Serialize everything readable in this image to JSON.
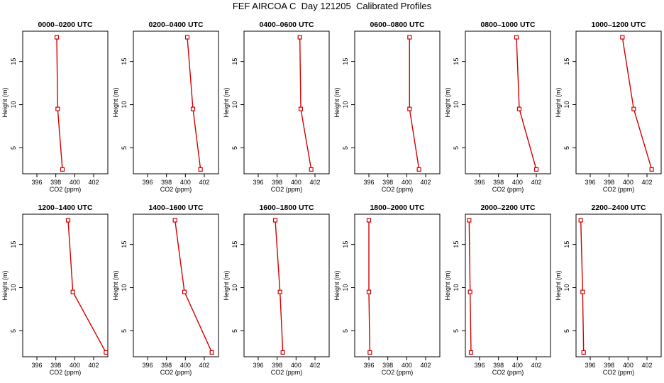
{
  "figure": {
    "title": "FEF AIRCOA C  Day 121205  Calibrated Profiles"
  },
  "chart_data": [
    {
      "type": "line",
      "title": "0000–0200 UTC",
      "xlabel": "CO2 (ppm)",
      "ylabel": "Height (m)",
      "xlim": [
        394.5,
        403.5
      ],
      "ylim": [
        2,
        18.5
      ],
      "xticks": [
        396,
        398,
        400,
        402
      ],
      "yticks": [
        5,
        10,
        15
      ],
      "grid": false,
      "series": [
        {
          "points": [
            {
              "x": 398.7,
              "y": 2.5
            },
            {
              "x": 398.2,
              "y": 9.5
            },
            {
              "x": 398.1,
              "y": 17.8
            }
          ]
        }
      ]
    },
    {
      "type": "line",
      "title": "0200–0400 UTC",
      "xlabel": "CO2 (ppm)",
      "ylabel": "Height (m)",
      "xlim": [
        394.5,
        403.5
      ],
      "ylim": [
        2,
        18.5
      ],
      "xticks": [
        396,
        398,
        400,
        402
      ],
      "yticks": [
        5,
        10,
        15
      ],
      "grid": false,
      "series": [
        {
          "points": [
            {
              "x": 401.6,
              "y": 2.5
            },
            {
              "x": 400.8,
              "y": 9.5
            },
            {
              "x": 400.2,
              "y": 17.8
            }
          ]
        }
      ]
    },
    {
      "type": "line",
      "title": "0400–0600 UTC",
      "xlabel": "CO2 (ppm)",
      "ylabel": "Height (m)",
      "xlim": [
        394.5,
        403.5
      ],
      "ylim": [
        2,
        18.5
      ],
      "xticks": [
        396,
        398,
        400,
        402
      ],
      "yticks": [
        5,
        10,
        15
      ],
      "grid": false,
      "series": [
        {
          "points": [
            {
              "x": 401.6,
              "y": 2.5
            },
            {
              "x": 400.5,
              "y": 9.5
            },
            {
              "x": 400.4,
              "y": 17.8
            }
          ]
        }
      ]
    },
    {
      "type": "line",
      "title": "0600–0800 UTC",
      "xlabel": "CO2 (ppm)",
      "ylabel": "Height (m)",
      "xlim": [
        394.5,
        403.5
      ],
      "ylim": [
        2,
        18.5
      ],
      "xticks": [
        396,
        398,
        400,
        402
      ],
      "yticks": [
        5,
        10,
        15
      ],
      "grid": false,
      "series": [
        {
          "points": [
            {
              "x": 401.3,
              "y": 2.5
            },
            {
              "x": 400.3,
              "y": 9.5
            },
            {
              "x": 400.3,
              "y": 17.8
            }
          ]
        }
      ]
    },
    {
      "type": "line",
      "title": "0800–1000 UTC",
      "xlabel": "CO2 (ppm)",
      "ylabel": "Height (m)",
      "xlim": [
        394.5,
        403.5
      ],
      "ylim": [
        2,
        18.5
      ],
      "xticks": [
        396,
        398,
        400,
        402
      ],
      "yticks": [
        5,
        10,
        15
      ],
      "grid": false,
      "series": [
        {
          "points": [
            {
              "x": 402.0,
              "y": 2.5
            },
            {
              "x": 400.2,
              "y": 9.5
            },
            {
              "x": 399.9,
              "y": 17.8
            }
          ]
        }
      ]
    },
    {
      "type": "line",
      "title": "1000–1200 UTC",
      "xlabel": "CO2 (ppm)",
      "ylabel": "Height (m)",
      "xlim": [
        394.5,
        403.5
      ],
      "ylim": [
        2,
        18.5
      ],
      "xticks": [
        396,
        398,
        400,
        402
      ],
      "yticks": [
        5,
        10,
        15
      ],
      "grid": false,
      "series": [
        {
          "points": [
            {
              "x": 402.5,
              "y": 2.5
            },
            {
              "x": 400.6,
              "y": 9.5
            },
            {
              "x": 399.4,
              "y": 17.8
            }
          ]
        }
      ]
    },
    {
      "type": "line",
      "title": "1200–1400 UTC",
      "xlabel": "CO2 (ppm)",
      "ylabel": "Height (m)",
      "xlim": [
        394.5,
        403.5
      ],
      "ylim": [
        2,
        18.5
      ],
      "xticks": [
        396,
        398,
        400,
        402
      ],
      "yticks": [
        5,
        10,
        15
      ],
      "grid": false,
      "series": [
        {
          "points": [
            {
              "x": 403.3,
              "y": 2.5
            },
            {
              "x": 399.8,
              "y": 9.5
            },
            {
              "x": 399.3,
              "y": 17.8
            }
          ]
        }
      ]
    },
    {
      "type": "line",
      "title": "1400–1600 UTC",
      "xlabel": "CO2 (ppm)",
      "ylabel": "Height (m)",
      "xlim": [
        394.5,
        403.5
      ],
      "ylim": [
        2,
        18.5
      ],
      "xticks": [
        396,
        398,
        400,
        402
      ],
      "yticks": [
        5,
        10,
        15
      ],
      "grid": false,
      "series": [
        {
          "points": [
            {
              "x": 402.8,
              "y": 2.5
            },
            {
              "x": 399.9,
              "y": 9.5
            },
            {
              "x": 398.9,
              "y": 17.8
            }
          ]
        }
      ]
    },
    {
      "type": "line",
      "title": "1600–1800 UTC",
      "xlabel": "CO2 (ppm)",
      "ylabel": "Height (m)",
      "xlim": [
        394.5,
        403.5
      ],
      "ylim": [
        2,
        18.5
      ],
      "xticks": [
        396,
        398,
        400,
        402
      ],
      "yticks": [
        5,
        10,
        15
      ],
      "grid": false,
      "series": [
        {
          "points": [
            {
              "x": 398.6,
              "y": 2.5
            },
            {
              "x": 398.3,
              "y": 9.5
            },
            {
              "x": 397.8,
              "y": 17.8
            }
          ]
        }
      ]
    },
    {
      "type": "line",
      "title": "1800–2000 UTC",
      "xlabel": "CO2 (ppm)",
      "ylabel": "Height (m)",
      "xlim": [
        394.5,
        403.5
      ],
      "ylim": [
        2,
        18.5
      ],
      "xticks": [
        396,
        398,
        400,
        402
      ],
      "yticks": [
        5,
        10,
        15
      ],
      "grid": false,
      "series": [
        {
          "points": [
            {
              "x": 396.1,
              "y": 2.5
            },
            {
              "x": 396.0,
              "y": 9.5
            },
            {
              "x": 396.0,
              "y": 17.8
            }
          ]
        }
      ]
    },
    {
      "type": "line",
      "title": "2000–2200 UTC",
      "xlabel": "CO2 (ppm)",
      "ylabel": "Height (m)",
      "xlim": [
        394.5,
        403.5
      ],
      "ylim": [
        2,
        18.5
      ],
      "xticks": [
        396,
        398,
        400,
        402
      ],
      "yticks": [
        5,
        10,
        15
      ],
      "grid": false,
      "series": [
        {
          "points": [
            {
              "x": 395.1,
              "y": 2.5
            },
            {
              "x": 395.0,
              "y": 9.5
            },
            {
              "x": 394.9,
              "y": 17.8
            }
          ]
        }
      ]
    },
    {
      "type": "line",
      "title": "2200–2400 UTC",
      "xlabel": "CO2 (ppm)",
      "ylabel": "Height (m)",
      "xlim": [
        394.5,
        403.5
      ],
      "ylim": [
        2,
        18.5
      ],
      "xticks": [
        396,
        398,
        400,
        402
      ],
      "yticks": [
        5,
        10,
        15
      ],
      "grid": false,
      "series": [
        {
          "points": [
            {
              "x": 395.3,
              "y": 2.5
            },
            {
              "x": 395.2,
              "y": 9.5
            },
            {
              "x": 395.0,
              "y": 17.8
            }
          ]
        }
      ]
    }
  ],
  "colors": {
    "line": "#d40000",
    "marker": "#d40000",
    "axis": "#000000"
  }
}
